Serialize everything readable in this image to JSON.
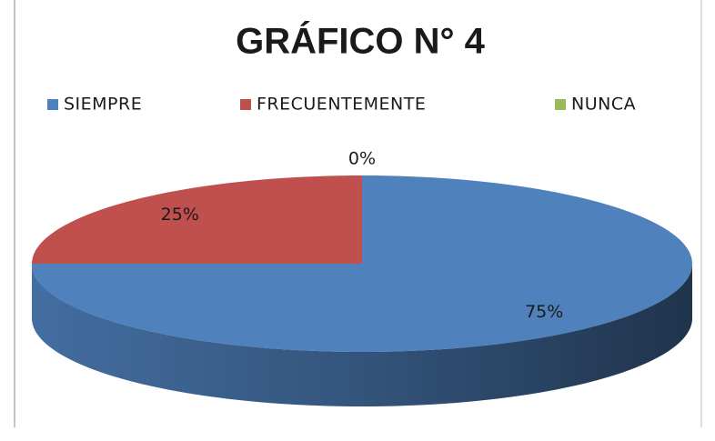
{
  "chart_data": {
    "type": "pie3d",
    "title": "GRÁFICO N° 4",
    "categories": [
      "SIEMPRE",
      "FRECUENTEMENTE",
      "NUNCA"
    ],
    "values": [
      75,
      25,
      0
    ],
    "value_labels": [
      "75%",
      "25%",
      "0%"
    ],
    "colors": [
      "#4f81bd",
      "#c0504d",
      "#9bbb59"
    ],
    "legend": "top"
  }
}
